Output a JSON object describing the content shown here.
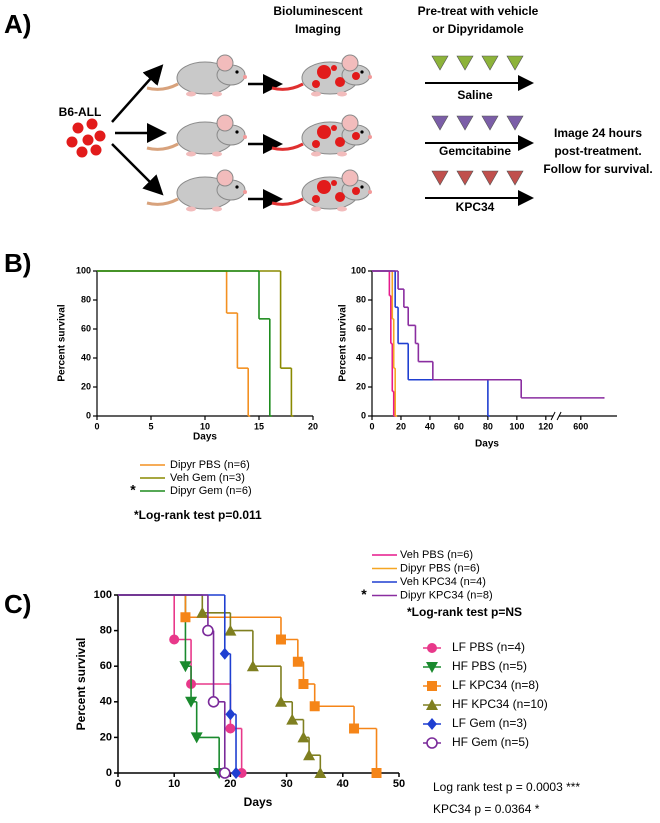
{
  "panel_labels": [
    "A)",
    "B)",
    "C)"
  ],
  "schematic": {
    "source": "B6-ALL",
    "imaging": [
      "Bioluminescent",
      "Imaging"
    ],
    "pretreat": [
      "Pre-treat with vehicle",
      "or Dipyridamole"
    ],
    "treatments": [
      "Saline",
      "Gemcitabine",
      "KPC34"
    ],
    "followup": [
      "Image 24 hours",
      "post-treatment.",
      "Follow for survival."
    ]
  },
  "chart_data": [
    {
      "type": "step",
      "xlabel": "Days",
      "ylabel": "Percent survival",
      "xlim": [
        0,
        20
      ],
      "xticks": [
        0,
        5,
        10,
        15,
        20
      ],
      "ylim": [
        0,
        100
      ],
      "yticks": [
        0,
        20,
        40,
        60,
        80,
        100
      ],
      "series": [
        {
          "name": "Dipyr PBS (n=6)",
          "color": "#f39021",
          "x": [
            0,
            12,
            13,
            14
          ],
          "values": [
            100,
            71,
            33,
            0
          ]
        },
        {
          "name": "Veh Gem (n=3)",
          "color": "#8a8a00",
          "x": [
            0,
            17,
            18
          ],
          "values": [
            100,
            33,
            0
          ]
        },
        {
          "name": "Dipyr Gem (n=6)",
          "color": "#1e8c1e",
          "x": [
            0,
            15,
            16
          ],
          "values": [
            100,
            67,
            0
          ]
        }
      ],
      "legend_note": {
        "series": 2,
        "text": "*"
      },
      "annotations": [
        "*Log-rank test p=0.011"
      ]
    },
    {
      "type": "step",
      "xlabel": "Days",
      "ylabel": "Percent survival",
      "xlim": [
        0,
        625
      ],
      "xbreak": [
        125,
        585
      ],
      "xticks": [
        0,
        20,
        40,
        60,
        80,
        100,
        120,
        600
      ],
      "ylim": [
        0,
        100
      ],
      "yticks": [
        0,
        20,
        40,
        60,
        80,
        100
      ],
      "series": [
        {
          "name": "Veh PBS (n=6)",
          "color": "#e6198c",
          "x": [
            0,
            12,
            13,
            14,
            15
          ],
          "values": [
            100,
            83,
            50,
            17,
            0
          ]
        },
        {
          "name": "Dipyr PBS (n=6)",
          "color": "#f5a623",
          "x": [
            0,
            14,
            15,
            16
          ],
          "values": [
            100,
            67,
            33,
            0
          ]
        },
        {
          "name": "Veh KPC34 (n=4)",
          "color": "#1f3fd1",
          "x": [
            0,
            16,
            18,
            25,
            80
          ],
          "values": [
            100,
            75,
            50,
            25,
            0
          ]
        },
        {
          "name": "Dipyr KPC34 (n=8)",
          "color": "#8a2da0",
          "x": [
            0,
            18,
            22,
            25,
            30,
            32,
            42,
            103,
            615
          ],
          "values": [
            100,
            87.5,
            75,
            62.5,
            50,
            37.5,
            25,
            12.5,
            12.5
          ]
        }
      ],
      "legend_note": {
        "series": 3,
        "text": "*"
      },
      "annotations": [
        "*Log-rank test p=NS"
      ]
    },
    {
      "type": "step",
      "xlabel": "Days",
      "ylabel": "Percent survival",
      "xlim": [
        0,
        50
      ],
      "xticks": [
        0,
        10,
        20,
        30,
        40,
        50
      ],
      "ylim": [
        0,
        100
      ],
      "yticks": [
        0,
        20,
        40,
        60,
        80,
        100
      ],
      "series": [
        {
          "name": "LF PBS (n=4)",
          "color": "#e8388a",
          "marker": "circle",
          "x": [
            0,
            10,
            13,
            20,
            22
          ],
          "values": [
            100,
            75,
            50,
            25,
            0
          ]
        },
        {
          "name": "HF PBS (n=5)",
          "color": "#1a8a2e",
          "marker": "triangle-down",
          "x": [
            0,
            12,
            13,
            14,
            18
          ],
          "values": [
            100,
            60,
            40,
            20,
            0
          ]
        },
        {
          "name": "LF KPC34 (n=8)",
          "color": "#f58518",
          "marker": "square",
          "x": [
            0,
            12,
            29,
            32,
            33,
            35,
            42,
            46
          ],
          "values": [
            100,
            87.5,
            75,
            62.5,
            50,
            37.5,
            25,
            0
          ]
        },
        {
          "name": "HF KPC34 (n=10)",
          "color": "#7f7f20",
          "marker": "triangle-up",
          "x": [
            0,
            15,
            20,
            24,
            29,
            31,
            33,
            34,
            36
          ],
          "values": [
            100,
            90,
            80,
            60,
            40,
            30,
            20,
            10,
            0
          ]
        },
        {
          "name": "LF Gem (n=3)",
          "color": "#1f3fd1",
          "marker": "diamond",
          "x": [
            0,
            19,
            20,
            21
          ],
          "values": [
            100,
            67,
            33,
            0
          ]
        },
        {
          "name": "HF Gem (n=5)",
          "color": "#7a2a9a",
          "marker": "open-circle",
          "x": [
            0,
            16,
            17,
            19
          ],
          "values": [
            100,
            80,
            40,
            0
          ]
        }
      ],
      "annotations": [
        "Log rank test p = 0.0003 ***",
        "KPC34 p = 0.0364 *"
      ]
    }
  ]
}
